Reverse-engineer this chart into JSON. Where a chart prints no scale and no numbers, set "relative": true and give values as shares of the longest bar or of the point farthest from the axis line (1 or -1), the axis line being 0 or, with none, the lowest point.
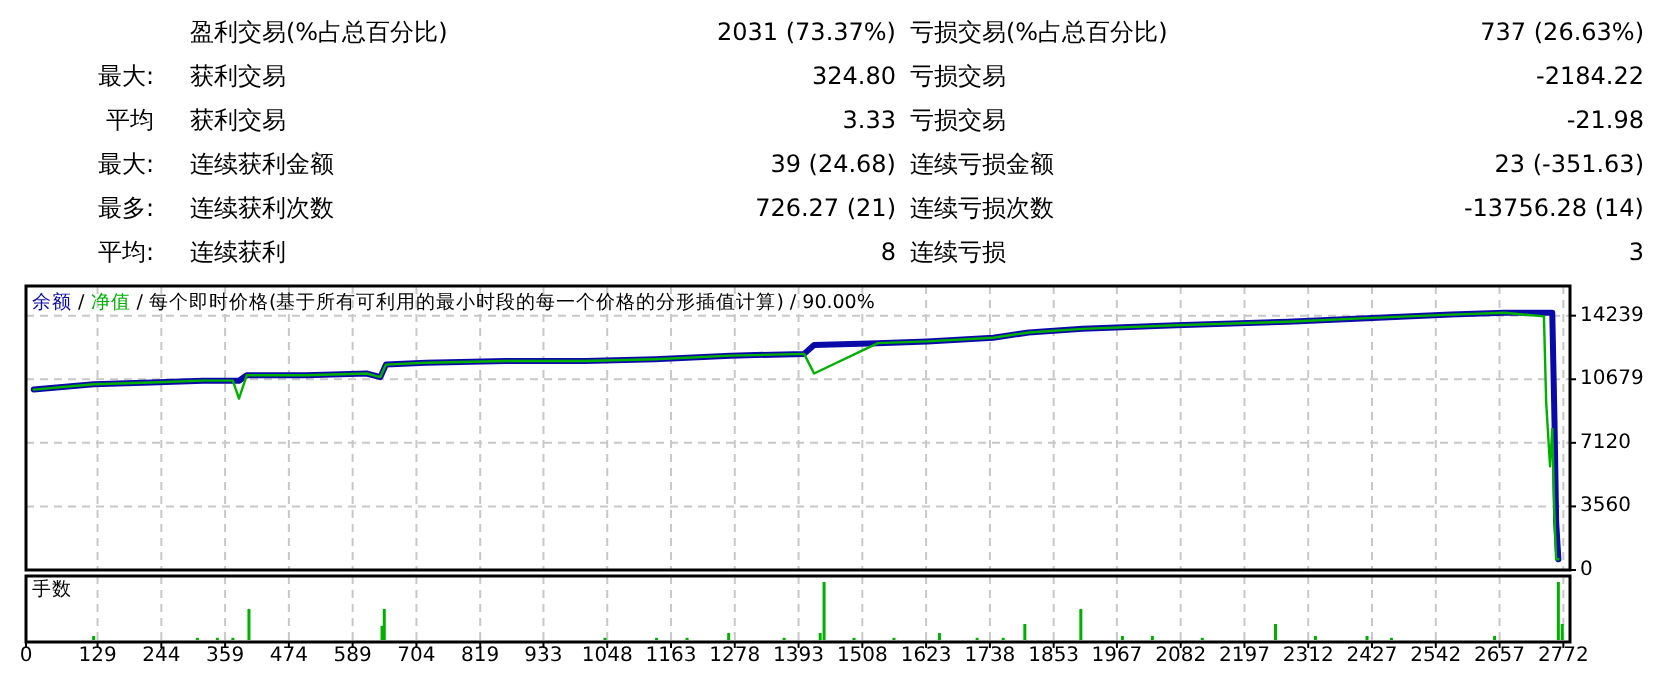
{
  "chart_data": [
    {
      "type": "other",
      "annotations": [
        "盈利交易(%占总百分比)",
        "2031 (73.37%)",
        "亏损交易(%占总百分比)",
        "737 (26.63%)",
        "最大:",
        "获利交易",
        "324.80",
        "亏损交易",
        "-2184.22",
        "平均",
        "获利交易",
        "3.33",
        "亏损交易",
        "-21.98",
        "最大:",
        "连续获利金额",
        "39 (24.68)",
        "连续亏损金额",
        "23 (-351.63)",
        "最多:",
        "连续获利次数",
        "726.27 (21)",
        "连续亏损次数",
        "-13756.28 (14)",
        "平均:",
        "连续获利",
        "8",
        "连续亏损",
        "3"
      ]
    },
    {
      "type": "line",
      "title": "/ 每个即时价格(基于所有可利用的最小时段的每一个价格的分形插值计算) / 90.00%",
      "annotations": [
        "/"
      ],
      "x": [
        14,
        122,
        226,
        319,
        373,
        384,
        398,
        506,
        614,
        639,
        649,
        721,
        865,
        1008,
        1134,
        1270,
        1403,
        1421,
        1536,
        1625,
        1744,
        1808,
        1905,
        2074,
        2275,
        2418,
        2569,
        2666,
        2737,
        2741,
        2748,
        2752,
        2756,
        2759,
        2763
      ],
      "series": [
        {
          "name": "余额",
          "color": "#0a0aa8",
          "values": [
            10100,
            10400,
            10500,
            10600,
            10600,
            10600,
            10900,
            10900,
            11000,
            10800,
            11500,
            11600,
            11700,
            11700,
            11800,
            12000,
            12100,
            12600,
            12700,
            12800,
            13000,
            13300,
            13500,
            13700,
            13900,
            14100,
            14300,
            14400,
            14400,
            14400,
            14400,
            14400,
            8400,
            2700,
            600
          ]
        },
        {
          "name": "净值",
          "color": "#00b000",
          "values": [
            10100,
            10400,
            10500,
            10600,
            10600,
            9600,
            10900,
            10900,
            11000,
            10800,
            11500,
            11600,
            11700,
            11700,
            11800,
            12000,
            12100,
            11000,
            12700,
            12800,
            13000,
            13300,
            13500,
            13700,
            13900,
            14100,
            14300,
            14400,
            14200,
            9400,
            5800,
            7900,
            3000,
            600,
            600
          ]
        }
      ],
      "xlim": [
        0,
        2784
      ],
      "xticks": [
        0,
        129,
        244,
        359,
        474,
        589,
        704,
        819,
        933,
        1048,
        1163,
        1278,
        1393,
        1508,
        1623,
        1738,
        1853,
        1967,
        2082,
        2197,
        2312,
        2427,
        2542,
        2657,
        2772
      ],
      "ylim": [
        0,
        15900
      ],
      "yticks": [
        0,
        3560,
        7120,
        10679,
        14239
      ],
      "grid": true,
      "legend": "top left",
      "tick_labels": "y"
    },
    {
      "type": "bar",
      "title": "手数",
      "relative": true,
      "color": "#00b000",
      "x": [
        122,
        309,
        345,
        373,
        402,
        642,
        646,
        1044,
        1137,
        1192,
        1267,
        1367,
        1432,
        1439,
        1493,
        1565,
        1647,
        1715,
        1762,
        1801,
        1902,
        1977,
        2031,
        2121,
        2253,
        2325,
        2418,
        2462,
        2648,
        2763,
        2770
      ],
      "values": [
        0.1,
        0.07,
        0.07,
        0.07,
        0.55,
        0.27,
        0.55,
        0.07,
        0.07,
        0.07,
        0.15,
        0.07,
        0.15,
        1,
        0.07,
        0.07,
        0.15,
        0.07,
        0.07,
        0.3,
        0.55,
        0.1,
        0.1,
        0.07,
        0.3,
        0.1,
        0.1,
        0.07,
        0.1,
        1,
        0.3
      ],
      "xlim": [
        0,
        2784
      ],
      "xticks": [
        0,
        129,
        244,
        359,
        474,
        589,
        704,
        819,
        933,
        1048,
        1163,
        1278,
        1393,
        1508,
        1623,
        1738,
        1853,
        1967,
        2082,
        2197,
        2312,
        2427,
        2542,
        2657,
        2772
      ],
      "grid": "x",
      "tick_labels": "x"
    }
  ]
}
